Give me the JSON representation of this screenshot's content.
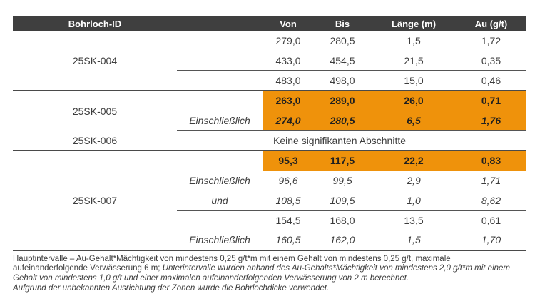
{
  "header": {
    "id": "Bohrloch-ID",
    "von": "Von",
    "bis": "Bis",
    "laenge": "Länge (m)",
    "au": "Au (g/t)"
  },
  "sections": [
    {
      "id": "25SK-004",
      "rows": [
        {
          "qual": "",
          "von": "279,0",
          "bis": "280,5",
          "laenge": "1,5",
          "au": "1,72"
        },
        {
          "qual": "",
          "von": "433,0",
          "bis": "454,5",
          "laenge": "21,5",
          "au": "0,35"
        },
        {
          "qual": "",
          "von": "483,0",
          "bis": "498,0",
          "laenge": "15,0",
          "au": "0,46"
        }
      ]
    },
    {
      "id": "25SK-005",
      "rows": [
        {
          "qual": "",
          "von": "263,0",
          "bis": "289,0",
          "laenge": "26,0",
          "au": "0,71",
          "highlight": true
        },
        {
          "qual": "Einschließlich",
          "von": "274,0",
          "bis": "280,5",
          "laenge": "6,5",
          "au": "1,76",
          "highlight": true,
          "italic": true
        }
      ]
    },
    {
      "id": "25SK-006",
      "note": "Keine signifikanten Abschnitte"
    },
    {
      "id": "25SK-007",
      "rows": [
        {
          "qual": "",
          "von": "95,3",
          "bis": "117,5",
          "laenge": "22,2",
          "au": "0,83",
          "highlight": true
        },
        {
          "qual": "Einschließlich",
          "von": "96,6",
          "bis": "99,5",
          "laenge": "2,9",
          "au": "1,71",
          "italic": true
        },
        {
          "qual": "und",
          "von": "108,5",
          "bis": "109,5",
          "laenge": "1,0",
          "au": "8,62",
          "italic": true
        },
        {
          "qual": "",
          "von": "154,5",
          "bis": "168,0",
          "laenge": "13,5",
          "au": "0,61"
        },
        {
          "qual": "Einschließlich",
          "von": "160,5",
          "bis": "162,0",
          "laenge": "1,5",
          "au": "1,70",
          "italic": true
        }
      ]
    }
  ],
  "footnote": {
    "regular": "Hauptintervalle – Au-Gehalt*Mächtigkeit von mindestens 0,25 g/t*m mit einem Gehalt von mindestens 0,25 g/t, maximale aufeinanderfolgende Verwässerung 6 m; ",
    "italic": "Unterintervalle wurden anhand des Au-Gehalts*Mächtigkeit von mindestens 2,0 g/t*m mit einem Gehalt von mindestens 1,0 g/t und einer maximalen aufeinanderfolgenden Verwässerung von 2 m berechnet.",
    "last_line": "Aufgrund der unbekannten Ausrichtung der Zonen wurde die Bohrlochdicke verwendet."
  },
  "colors": {
    "header_bg": "#3f3f3f",
    "highlight": "#ef920b",
    "line": "#4a4a4a",
    "text": "#3d3d3d"
  }
}
